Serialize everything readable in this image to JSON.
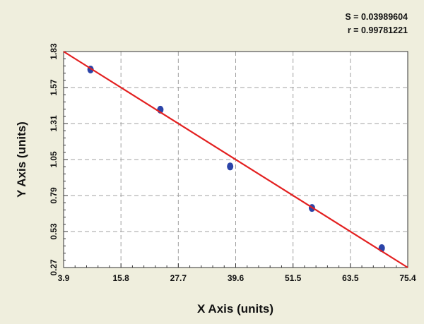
{
  "chart_data": {
    "type": "scatter",
    "xlabel": "X Axis (units)",
    "ylabel": "Y Axis (units)",
    "xlim": [
      3.9,
      75.4
    ],
    "ylim": [
      0.27,
      1.83
    ],
    "x_ticks": [
      "3.9",
      "15.8",
      "27.7",
      "39.6",
      "51.5",
      "63.5",
      "75.4"
    ],
    "y_ticks": [
      "1.83",
      "1.57",
      "1.31",
      "1.05",
      "0.79",
      "0.53",
      "0.27"
    ],
    "grid": true,
    "points": [
      {
        "x": 9.5,
        "y": 1.7
      },
      {
        "x": 24.0,
        "y": 1.41
      },
      {
        "x": 38.5,
        "y": 1.0
      },
      {
        "x": 55.5,
        "y": 0.7
      },
      {
        "x": 70.0,
        "y": 0.41
      }
    ],
    "fit_line": {
      "x": [
        3.9,
        75.4
      ],
      "y": [
        1.83,
        0.27
      ]
    },
    "stats": {
      "s_label": "S = 0.03989604",
      "r_label": "r = 0.99781221"
    },
    "colors": {
      "background": "#efeedd",
      "plot_background": "#ffffff",
      "grid": "#a0a0a0",
      "point": "#2b44a8",
      "fit_line": "#e32020"
    }
  }
}
